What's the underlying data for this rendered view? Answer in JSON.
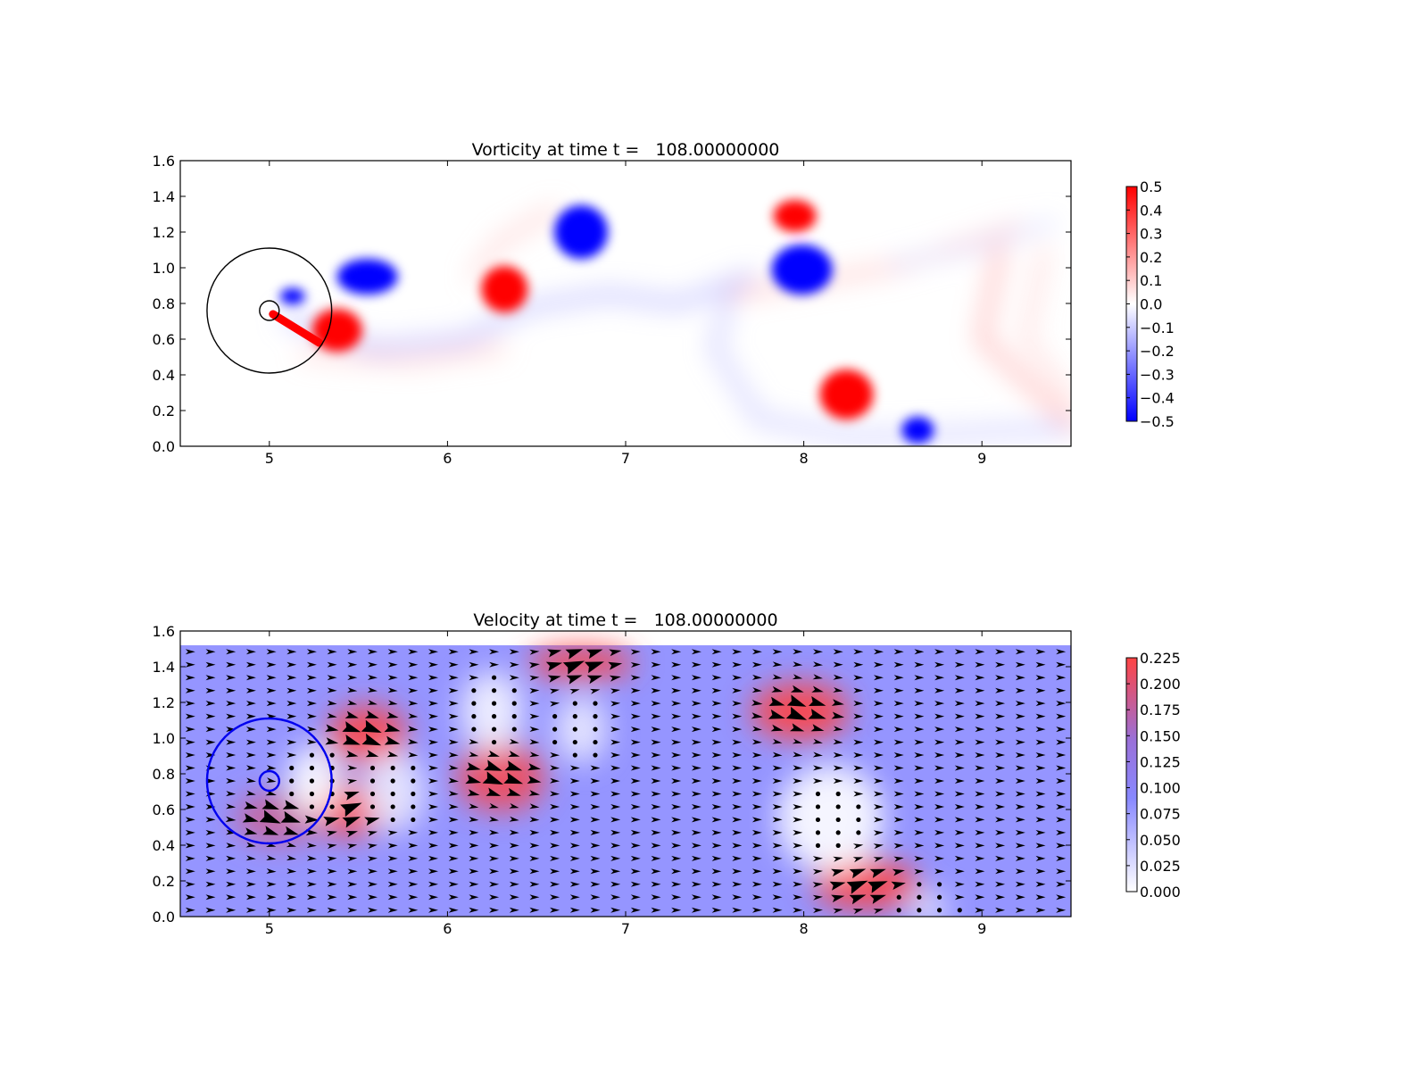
{
  "chart_data": [
    {
      "type": "heatmap",
      "title": "Vorticity at time t =   108.00000000",
      "xlabel": "",
      "ylabel": "",
      "xlim": [
        4.5,
        9.5
      ],
      "ylim": [
        0.0,
        1.6
      ],
      "xticks": [
        "5",
        "6",
        "7",
        "8",
        "9"
      ],
      "yticks": [
        "0.0",
        "0.2",
        "0.4",
        "0.6",
        "0.8",
        "1.0",
        "1.2",
        "1.4",
        "1.6"
      ],
      "colormap": [
        "#0000ff",
        "#ffffff",
        "#ff0000"
      ],
      "colorbar": {
        "range": [
          -0.5,
          0.5
        ],
        "ticks": [
          "0.5",
          "0.4",
          "0.3",
          "0.2",
          "0.1",
          "0.0",
          "−0.1",
          "−0.2",
          "−0.3",
          "−0.4",
          "−0.5"
        ]
      },
      "grid": false,
      "legend": "none",
      "features": {
        "vortices": [
          {
            "x": 5.13,
            "y": 0.84,
            "value": -0.5
          },
          {
            "x": 5.55,
            "y": 0.95,
            "value": -0.5
          },
          {
            "x": 5.38,
            "y": 0.65,
            "value": 0.5
          },
          {
            "x": 6.32,
            "y": 0.88,
            "value": 0.5
          },
          {
            "x": 6.75,
            "y": 1.2,
            "value": -0.5
          },
          {
            "x": 7.95,
            "y": 1.29,
            "value": 0.5
          },
          {
            "x": 7.99,
            "y": 0.99,
            "value": -0.5
          },
          {
            "x": 8.24,
            "y": 0.29,
            "value": 0.5
          },
          {
            "x": 8.64,
            "y": 0.09,
            "value": -0.5
          }
        ],
        "circles": [
          {
            "cx": 5.0,
            "cy": 0.76,
            "r": 0.35,
            "color": "#000000"
          },
          {
            "cx": 5.0,
            "cy": 0.76,
            "r": 0.055,
            "color": "#000000"
          }
        ]
      }
    },
    {
      "type": "heatmap",
      "title": "Velocity at time t =   108.00000000",
      "xlabel": "",
      "ylabel": "",
      "xlim": [
        4.5,
        9.5
      ],
      "ylim": [
        0.0,
        1.6
      ],
      "xticks": [
        "5",
        "6",
        "7",
        "8",
        "9"
      ],
      "yticks": [
        "0.0",
        "0.2",
        "0.4",
        "0.6",
        "0.8",
        "1.0",
        "1.2",
        "1.4",
        "1.6"
      ],
      "colormap": [
        "#ffffff",
        "#8888ff",
        "#ff4444"
      ],
      "colorbar": {
        "range": [
          0.0,
          0.225
        ],
        "ticks": [
          "0.225",
          "0.200",
          "0.175",
          "0.150",
          "0.125",
          "0.100",
          "0.075",
          "0.050",
          "0.025",
          "0.000"
        ]
      },
      "overlay": "quiver",
      "grid": false,
      "legend": "none",
      "features": {
        "field_top_y": 1.52,
        "background_speed": 0.1,
        "fast_regions": [
          {
            "x": 5.55,
            "y": 1.02,
            "speed": 0.22
          },
          {
            "x": 5.45,
            "y": 0.6,
            "speed": 0.22
          },
          {
            "x": 6.3,
            "y": 0.78,
            "speed": 0.21
          },
          {
            "x": 6.75,
            "y": 1.42,
            "speed": 0.22
          },
          {
            "x": 7.98,
            "y": 1.15,
            "speed": 0.22
          },
          {
            "x": 8.35,
            "y": 0.18,
            "speed": 0.22
          },
          {
            "x": 5.05,
            "y": 0.55,
            "speed": 0.17
          }
        ],
        "slow_regions": [
          {
            "x": 5.25,
            "y": 0.76,
            "speed": 0.0
          },
          {
            "x": 5.7,
            "y": 0.7,
            "speed": 0.02
          },
          {
            "x": 6.25,
            "y": 1.15,
            "speed": 0.01
          },
          {
            "x": 6.75,
            "y": 1.05,
            "speed": 0.02
          },
          {
            "x": 8.15,
            "y": 0.55,
            "speed": 0.0
          },
          {
            "x": 8.7,
            "y": 0.05,
            "speed": 0.02
          }
        ],
        "circles": [
          {
            "cx": 5.0,
            "cy": 0.76,
            "r": 0.35,
            "color": "#0000ee"
          },
          {
            "cx": 5.0,
            "cy": 0.76,
            "r": 0.055,
            "color": "#0000ee"
          }
        ]
      }
    }
  ]
}
